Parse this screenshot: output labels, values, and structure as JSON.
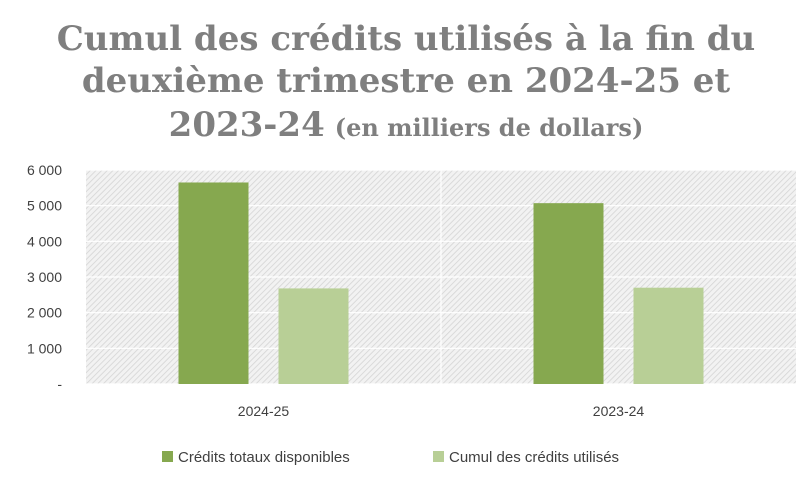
{
  "chart_data": {
    "type": "bar",
    "title_lines": [
      "Cumul des crédits utilisés à la fin du",
      "deuxième trimestre en 2024-25 et"
    ],
    "title_last_line_main": "2023-24",
    "title_last_line_suffix": "(en milliers de dollars)",
    "categories": [
      "2024-25",
      "2023-24"
    ],
    "series": [
      {
        "name": "Crédits totaux disponibles",
        "values": [
          5650,
          5070
        ],
        "color": "#86a84f"
      },
      {
        "name": "Cumul des crédits utilisés",
        "values": [
          2680,
          2700
        ],
        "color": "#b8cf96"
      }
    ],
    "ylim": [
      0,
      6000
    ],
    "y_ticks": [
      {
        "value": 6000,
        "label": "6 000"
      },
      {
        "value": 5000,
        "label": "5 000"
      },
      {
        "value": 4000,
        "label": "4 000"
      },
      {
        "value": 3000,
        "label": "3 000"
      },
      {
        "value": 2000,
        "label": "2 000"
      },
      {
        "value": 1000,
        "label": "1 000"
      },
      {
        "value": 0,
        "label": "-"
      }
    ],
    "grid": true,
    "legend_position": "bottom",
    "plot_background": "hatched-gray"
  }
}
